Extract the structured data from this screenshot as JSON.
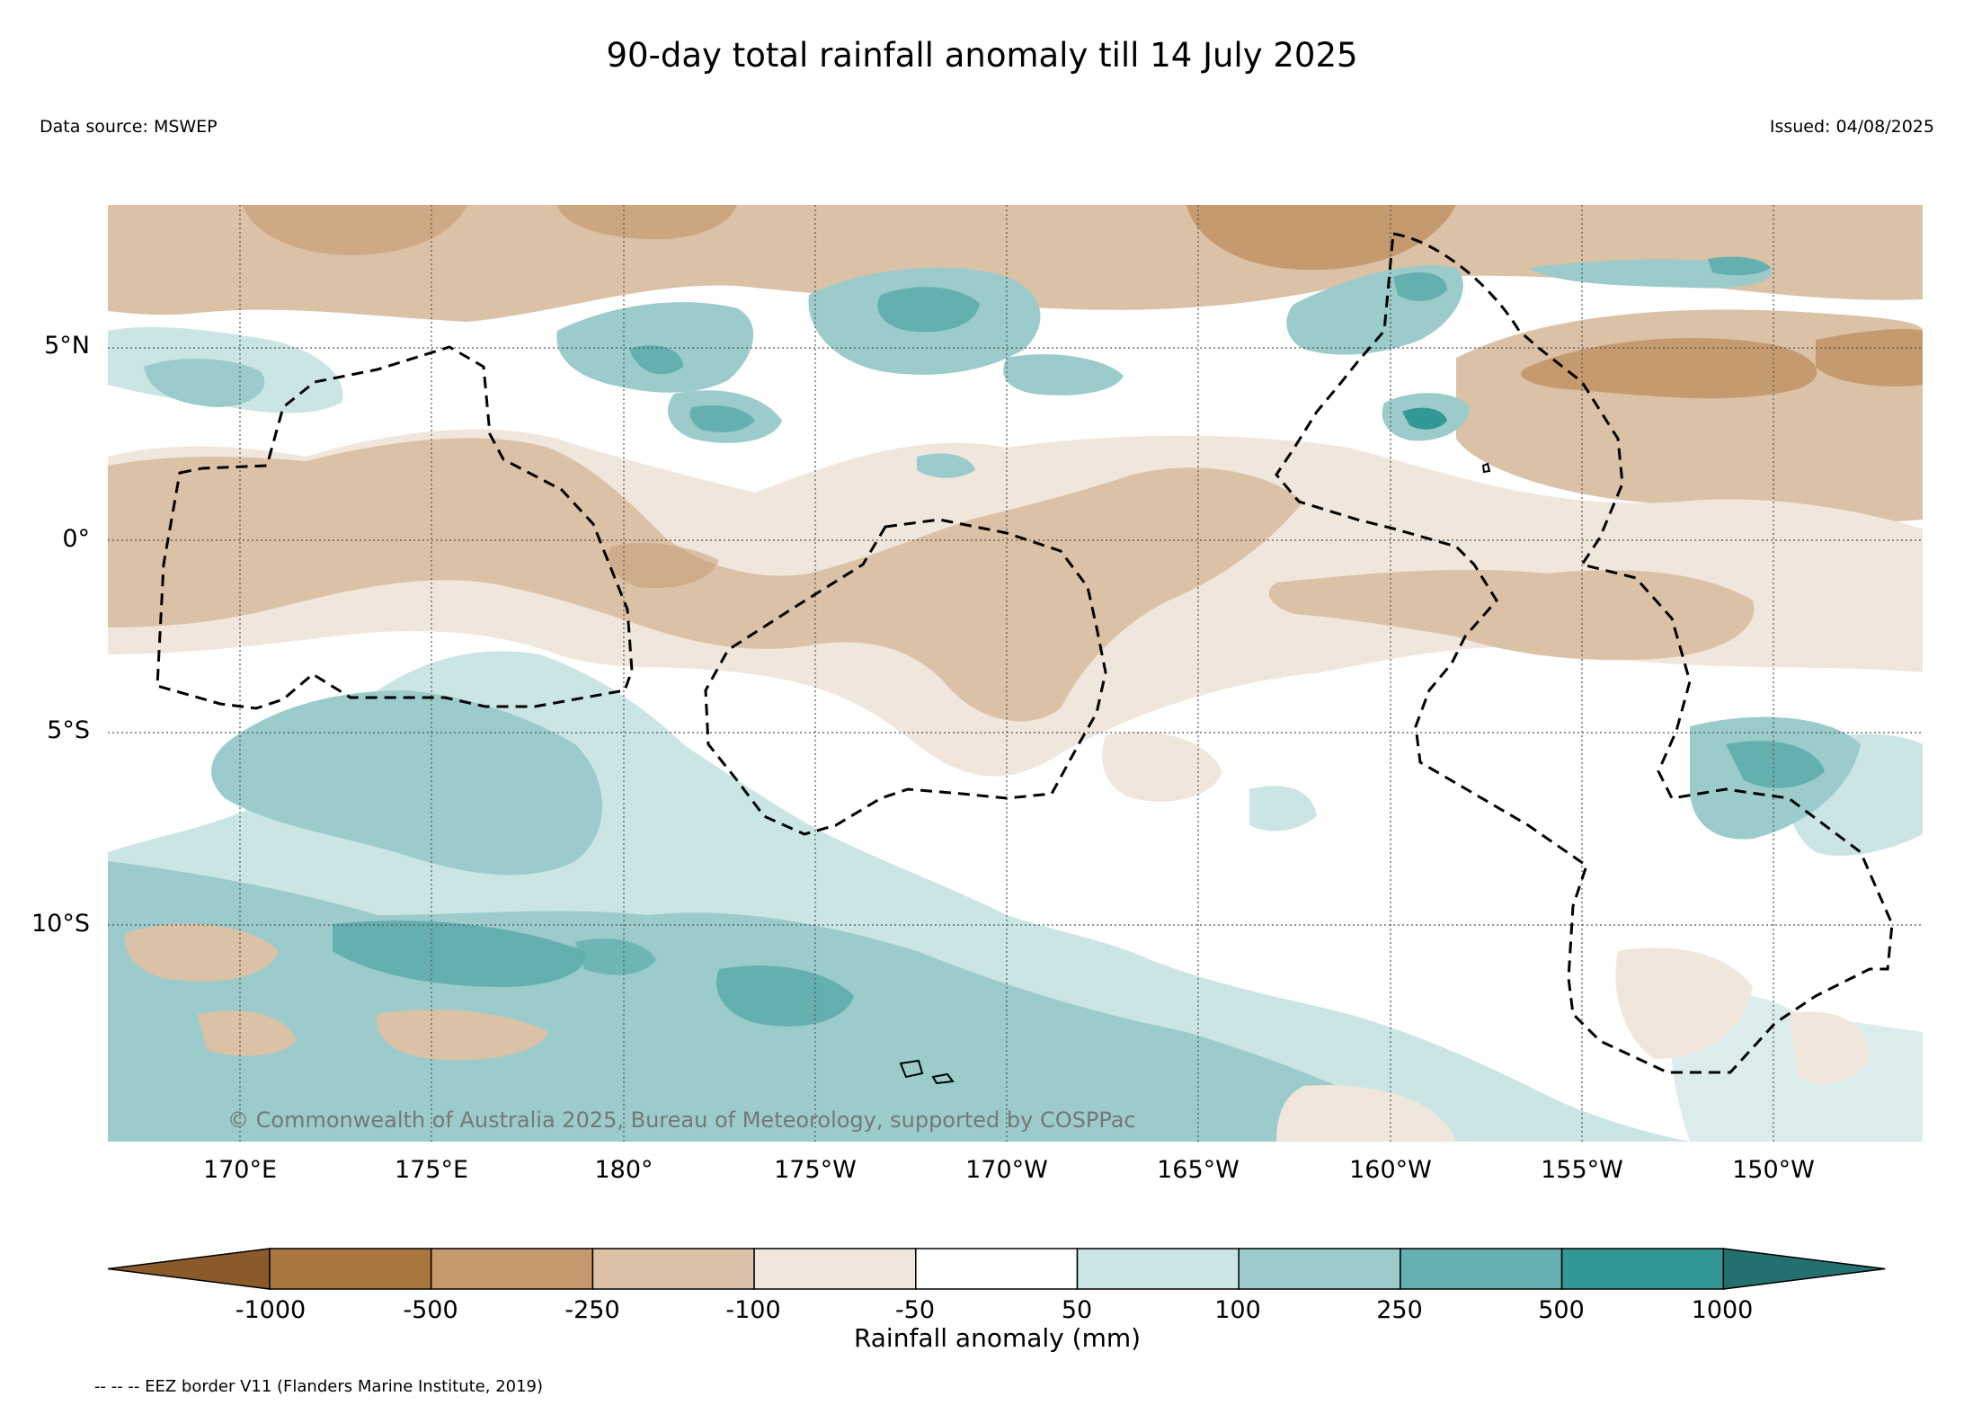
{
  "header": {
    "title": "90-day total rainfall anomaly till 14 July 2025",
    "data_source": "Data source: MSWEP",
    "issued": "Issued: 04/08/2025"
  },
  "map": {
    "lat_labels": [
      "5°N",
      "0°",
      "5°S",
      "10°S"
    ],
    "lon_labels": [
      "170°E",
      "175°E",
      "180°",
      "175°W",
      "170°W",
      "165°W",
      "160°W",
      "155°W",
      "150°W"
    ],
    "copyright": "© Commonwealth of Australia 2025, Bureau of Meteorology, supported by COSPPac"
  },
  "colorbar": {
    "title": "Rainfall anomaly (mm)",
    "tick_labels": [
      "-1000",
      "-500",
      "-250",
      "-100",
      "-50",
      "50",
      "100",
      "250",
      "500",
      "1000"
    ],
    "colors": [
      "#8b5a2b",
      "#a97640",
      "#c49a6e",
      "#dbc1a6",
      "#f0e6dc",
      "#ffffff",
      "#cbe5e4",
      "#9bcbcb",
      "#63b0ae",
      "#319895",
      "#23716e"
    ]
  },
  "legend": {
    "eez": "-- -- -- EEZ border V11 (Flanders Marine Institute, 2019)"
  }
}
